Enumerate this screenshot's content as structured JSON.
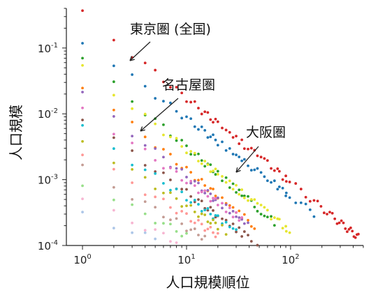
{
  "chart_data": {
    "type": "scatter",
    "xscale": "log",
    "yscale": "log",
    "xlabel": "人口規模順位",
    "ylabel": "人口規模",
    "xlim": [
      0.7,
      500
    ],
    "ylim": [
      0.0001,
      0.4
    ],
    "x_ticks": [
      {
        "value": 1,
        "base": "10",
        "exp": "0"
      },
      {
        "value": 10,
        "base": "10",
        "exp": "1"
      },
      {
        "value": 100,
        "base": "10",
        "exp": "2"
      }
    ],
    "y_ticks": [
      {
        "value": 0.0001,
        "base": "10",
        "exp": "-4"
      },
      {
        "value": 0.001,
        "base": "10",
        "exp": "-3"
      },
      {
        "value": 0.01,
        "base": "10",
        "exp": "-2"
      },
      {
        "value": 0.1,
        "base": "10",
        "exp": "-1"
      }
    ],
    "annotations": [
      {
        "text": "東京圏 (全国)",
        "point": [
          3,
          0.075
        ]
      },
      {
        "text": "名古屋圏",
        "point": [
          4,
          0.006
        ]
      },
      {
        "text": "大阪圏",
        "point": [
          28,
          0.0012
        ]
      }
    ],
    "series": [
      {
        "color": "#d62728",
        "start": 0.33,
        "slope": -1.28,
        "n": 450,
        "ranks": [
          1,
          2,
          3,
          4,
          5,
          6,
          7,
          8,
          9,
          10,
          12,
          15,
          20,
          25,
          30,
          40,
          50,
          60,
          70,
          80,
          100,
          120,
          150,
          200,
          250,
          300,
          350,
          400,
          450
        ]
      },
      {
        "color": "#1f77b4",
        "start": 0.13,
        "slope": -1.18,
        "n": 170,
        "ranks": [
          1,
          2,
          3,
          4,
          5,
          6,
          7,
          8,
          9,
          10,
          12,
          14,
          16,
          20,
          25,
          30,
          35,
          40,
          50,
          60,
          70,
          80,
          100,
          120,
          140,
          170
        ]
      },
      {
        "color": "#2ca02c",
        "start": 0.07,
        "slope": -1.35,
        "n": 70,
        "ranks": [
          1,
          2,
          3,
          4,
          5,
          6,
          7,
          8,
          10,
          12,
          14,
          16,
          18,
          20,
          25,
          30,
          35,
          40,
          45,
          50,
          60,
          70
        ]
      },
      {
        "color": "#e6e62e",
        "start": 0.05,
        "slope": -1.24,
        "n": 100,
        "ranks": [
          1,
          2,
          3,
          4,
          5,
          6,
          7,
          8,
          10,
          12,
          14,
          16,
          20,
          25,
          30,
          40,
          50,
          60,
          70,
          80,
          90,
          100
        ]
      },
      {
        "color": "#ff7f0e",
        "start": 0.028,
        "slope": -1.3,
        "n": 45,
        "ranks": [
          1,
          2,
          3,
          4,
          5,
          6,
          7,
          8,
          10,
          12,
          14,
          16,
          20,
          25,
          30,
          35,
          40,
          45
        ]
      },
      {
        "color": "#9467bd",
        "start": 0.02,
        "slope": -1.25,
        "n": 40,
        "ranks": [
          1,
          2,
          3,
          4,
          5,
          6,
          7,
          8,
          10,
          12,
          15,
          18,
          22,
          26,
          30,
          35,
          40
        ]
      },
      {
        "color": "#e377c2",
        "start": 0.012,
        "slope": -1.1,
        "n": 35,
        "ranks": [
          1,
          2,
          3,
          4,
          5,
          6,
          7,
          8,
          10,
          12,
          15,
          18,
          22,
          26,
          30,
          35
        ]
      },
      {
        "color": "#8c564b",
        "start": 0.009,
        "slope": -1.15,
        "n": 50,
        "ranks": [
          1,
          2,
          3,
          4,
          5,
          6,
          8,
          10,
          12,
          15,
          20,
          25,
          30,
          35,
          40,
          45,
          50
        ]
      },
      {
        "color": "#17becf",
        "start": 0.006,
        "slope": -1.05,
        "n": 30,
        "ranks": [
          1,
          2,
          3,
          4,
          5,
          6,
          8,
          10,
          12,
          15,
          20,
          25,
          30
        ]
      },
      {
        "color": "#bcbd22",
        "start": 0.004,
        "slope": -1.0,
        "n": 25,
        "ranks": [
          1,
          2,
          3,
          4,
          5,
          6,
          8,
          10,
          12,
          15,
          20,
          25
        ]
      },
      {
        "color": "#ff9896",
        "start": 0.0025,
        "slope": -0.95,
        "n": 20,
        "ranks": [
          1,
          2,
          3,
          4,
          5,
          6,
          8,
          10,
          12,
          15,
          20
        ]
      },
      {
        "color": "#c49c94",
        "start": 0.0015,
        "slope": -0.9,
        "n": 15,
        "ranks": [
          1,
          2,
          3,
          4,
          5,
          6,
          8,
          10,
          12,
          15
        ]
      },
      {
        "color": "#98df8a",
        "start": 0.0009,
        "slope": -0.8,
        "n": 10,
        "ranks": [
          1,
          2,
          3,
          4,
          5,
          6,
          8,
          10
        ]
      },
      {
        "color": "#f7b6d2",
        "start": 0.0005,
        "slope": -0.7,
        "n": 8,
        "ranks": [
          1,
          2,
          3,
          4,
          5,
          6,
          8
        ]
      },
      {
        "color": "#aec7e8",
        "start": 0.0003,
        "slope": -0.55,
        "n": 6,
        "ranks": [
          1,
          2,
          3,
          4,
          5,
          6
        ]
      }
    ]
  }
}
